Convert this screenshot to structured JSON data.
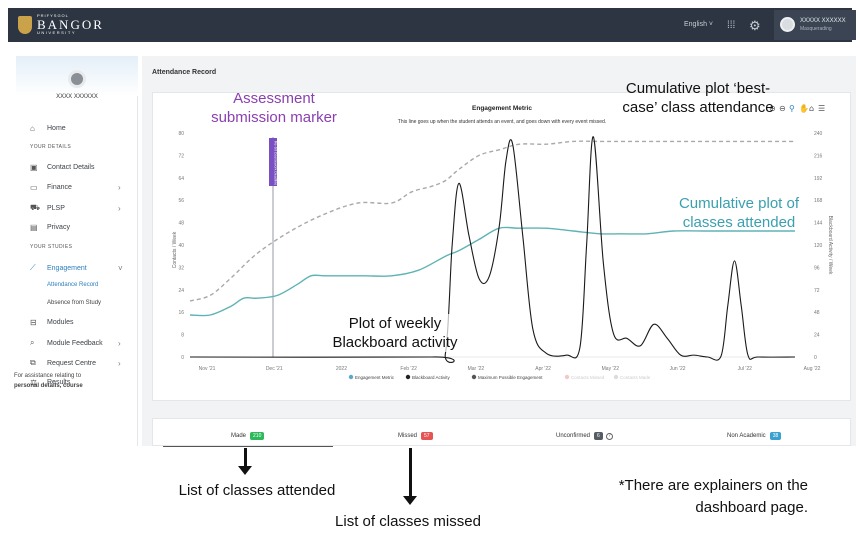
{
  "topbar": {
    "logo_pre": "PRIFYSGOL",
    "logo_main": "BANGOR",
    "logo_post": "UNIVERSITY",
    "language": "English ˅",
    "user_name": "XXXXX XXXXXX",
    "user_status": "Masquerading"
  },
  "sidebar": {
    "name": "XXXX XXXXXX",
    "home": "Home",
    "section_details": "YOUR DETAILS",
    "contact": "Contact Details",
    "finance": "Finance",
    "plsp": "PLSP",
    "privacy": "Privacy",
    "section_studies": "YOUR STUDIES",
    "engagement": "Engagement",
    "attendance_record": "Attendance Record",
    "absence": "Absence from Study",
    "modules": "Modules",
    "module_feedback": "Module Feedback",
    "request_centre": "Request Centre",
    "results": "Results",
    "help_line1": "For assistance relating to",
    "help_line2": "personal details, course"
  },
  "page": {
    "title": "Attendance Record"
  },
  "chart_data": {
    "type": "line",
    "title": "Engagement Metric",
    "subtitle": "This line goes up when the student attends an event, and goes down with every event missed.",
    "ylabel_left": "Contacts / Week",
    "ylabel_right": "Blackboard Activity / Week",
    "ylim_left": [
      0,
      80
    ],
    "ylim_right": [
      0,
      240
    ],
    "yticks_left": [
      "0",
      "8",
      "16",
      "24",
      "32",
      "40",
      "48",
      "56",
      "64",
      "72",
      "80"
    ],
    "yticks_right": [
      "0",
      "24",
      "48",
      "72",
      "96",
      "120",
      "144",
      "168",
      "192",
      "216",
      "240"
    ],
    "xticks": [
      "Nov '21",
      "Dec '21",
      "2022",
      "Feb '22",
      "Mar '22",
      "Apr '22",
      "May '22",
      "Jun '22",
      "Jul '22",
      "Aug '22"
    ],
    "marker_label": "Re-Sit Coursework Deadline",
    "legend": [
      "Engagement Metric",
      "Blackboard Activity",
      "Maximum Possible Engagement",
      "Contacts Missed",
      "Contacts Made"
    ],
    "legend_colors": [
      "#5aa9c9",
      "#222222",
      "#555555",
      "#f2c9c9",
      "#d9dde2"
    ],
    "series": [
      {
        "name": "Engagement Metric",
        "color": "#5fb3b3",
        "x": [
          0,
          0.3,
          0.6,
          0.8,
          1.0,
          1.3,
          1.6,
          1.8,
          2.0,
          2.3,
          2.6,
          3.0,
          3.4,
          3.8,
          4.0,
          4.3,
          4.6,
          4.9,
          5.3,
          5.7,
          6.1,
          6.4,
          6.8,
          7.2,
          7.7,
          8.1,
          8.5,
          9.0
        ],
        "values": [
          15,
          15,
          18,
          21,
          21,
          22,
          26,
          29,
          29,
          29,
          29,
          29,
          31,
          36,
          38,
          42,
          46,
          46,
          46,
          45,
          44,
          44,
          44,
          45,
          45,
          45,
          45,
          45
        ]
      },
      {
        "name": "Maximum Possible Engagement",
        "color": "#a9a9a9",
        "x": [
          0,
          0.3,
          0.6,
          1.0,
          1.5,
          2.0,
          2.5,
          3.0,
          3.3,
          3.6,
          3.8,
          4.0,
          4.3,
          4.6,
          4.9,
          5.3,
          5.7,
          6.1,
          6.5,
          7.0,
          7.5,
          8.0,
          8.5,
          9.0
        ],
        "values": [
          20,
          22,
          28,
          37,
          45,
          51,
          55,
          55,
          59,
          61,
          63,
          67,
          72,
          74,
          76,
          76,
          77,
          77,
          77,
          77,
          77,
          77,
          77,
          77
        ]
      },
      {
        "name": "Blackboard Activity",
        "color": "#1a1a1a",
        "x": [
          0,
          3.6,
          3.8,
          3.9,
          4.0,
          4.15,
          4.3,
          4.45,
          4.6,
          4.7,
          4.8,
          4.95,
          5.1,
          5.3,
          5.6,
          5.8,
          5.9,
          6.0,
          6.15,
          6.3,
          6.5,
          6.7,
          6.9,
          7.1,
          7.3,
          7.5,
          7.7,
          7.9,
          8.0,
          8.1,
          8.2,
          8.3,
          8.45,
          9.0
        ],
        "values": [
          0,
          0,
          4,
          120,
          186,
          130,
          84,
          86,
          140,
          210,
          228,
          130,
          30,
          4,
          2,
          10,
          120,
          236,
          100,
          25,
          20,
          12,
          35,
          20,
          2,
          2,
          0,
          1,
          55,
          103,
          55,
          2,
          0,
          0
        ]
      }
    ]
  },
  "tabs": {
    "made_label": "Made",
    "made_count": "210",
    "missed_label": "Missed",
    "missed_count": "57",
    "unconfirmed_label": "Unconfirmed",
    "unconfirmed_count": "6",
    "non_academic_label": "Non Academic",
    "non_academic_count": "38"
  },
  "annotations": {
    "assessment_marker": "Assessment submission marker",
    "best_case": "Cumulative plot ‘best-case’ class attendance",
    "attended_plot": "Cumulative plot of classes attended",
    "bb_activity": "Plot of weekly Blackboard activity",
    "classes_attended": "List of classes attended",
    "classes_missed": "List of classes missed",
    "explainers": "*There are explainers on the dashboard page."
  },
  "colors": {
    "topbar": "#2c3541",
    "accent": "#2c7fbf",
    "purple_annotation": "#8b3fb0",
    "teal_annotation": "#3aa0b0",
    "made_badge": "#2eb85c",
    "missed_badge": "#e55353",
    "unconfirmed_badge": "#555c64",
    "non_academic_badge": "#39a0d0",
    "marker": "#7a4fc2"
  }
}
